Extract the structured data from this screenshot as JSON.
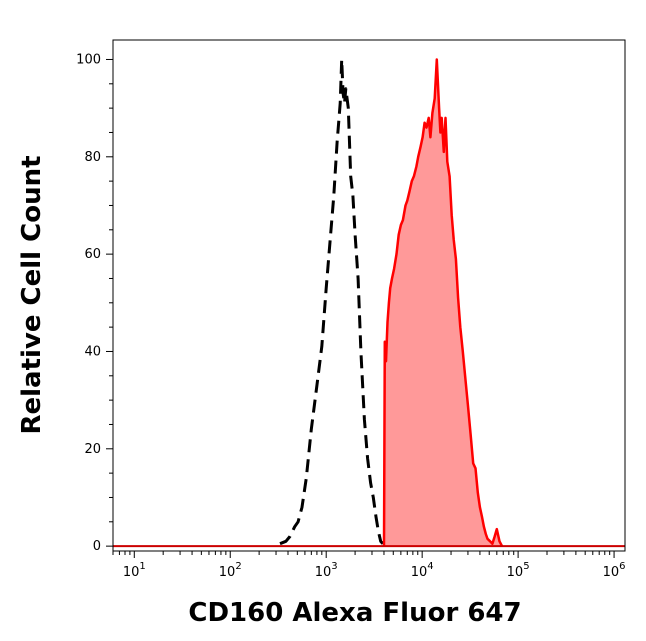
{
  "chart_data": {
    "type": "area",
    "xlabel": "CD160 Alexa Fluor 647",
    "ylabel": "Relative Cell Count",
    "x_scale": "log",
    "xlim": [
      6,
      1300000
    ],
    "ylim": [
      -1,
      104
    ],
    "x_ticks": [
      {
        "value": 10,
        "base": "10",
        "exp": "1"
      },
      {
        "value": 100,
        "base": "10",
        "exp": "2"
      },
      {
        "value": 1000,
        "base": "10",
        "exp": "3"
      },
      {
        "value": 10000,
        "base": "10",
        "exp": "4"
      },
      {
        "value": 100000,
        "base": "10",
        "exp": "5"
      },
      {
        "value": 1000000,
        "base": "10",
        "exp": "6"
      }
    ],
    "y_ticks": [
      0,
      20,
      40,
      60,
      80,
      100
    ],
    "series": [
      {
        "style": "dashed-line",
        "color": "#000000",
        "x": [
          330,
          380,
          420,
          470,
          510,
          560,
          620,
          700,
          800,
          900,
          1000,
          1100,
          1200,
          1300,
          1400,
          1450,
          1500,
          1550,
          1600,
          1700,
          1800,
          1900,
          2000,
          2150,
          2300,
          2500,
          2700,
          2900,
          3100,
          3300,
          3500,
          3700,
          3900
        ],
        "y": [
          0.5,
          1,
          2,
          4,
          5,
          8,
          14,
          24,
          33,
          41,
          53,
          63,
          72,
          83,
          91,
          100,
          93,
          91,
          94,
          90,
          76,
          72,
          64,
          55,
          40,
          26,
          18,
          13,
          10,
          6,
          3,
          1,
          0.5
        ]
      },
      {
        "style": "filled",
        "color": "#ff0000",
        "fill": "#ff9999",
        "x": [
          4000,
          4080,
          4200,
          4350,
          4500,
          4650,
          4850,
          5100,
          5400,
          5700,
          6000,
          6300,
          6700,
          7000,
          7400,
          7800,
          8200,
          8700,
          9100,
          9600,
          10100,
          10600,
          11100,
          11700,
          12200,
          12800,
          13500,
          14200,
          15000,
          15500,
          16000,
          16800,
          17500,
          18300,
          19300,
          20300,
          21300,
          22500,
          23700,
          25000,
          26500,
          28000,
          30000,
          32000,
          34000,
          36000,
          38000,
          40000,
          42000,
          44000,
          46000,
          48000,
          51000,
          54000,
          57000,
          60000,
          64000,
          68000
        ],
        "y": [
          0,
          42,
          38,
          46,
          50,
          53,
          55,
          57,
          60,
          64,
          66,
          67,
          70,
          71,
          73,
          75,
          76,
          78,
          80,
          82,
          84,
          87,
          86,
          88,
          84,
          89,
          92,
          100,
          90,
          85,
          88,
          81,
          88,
          79,
          76,
          68,
          63,
          59,
          51,
          45,
          40,
          35,
          29,
          23,
          17,
          16,
          11,
          8,
          6,
          4,
          2.5,
          1.5,
          1,
          0.5,
          2,
          3.5,
          1,
          0
        ]
      }
    ]
  }
}
